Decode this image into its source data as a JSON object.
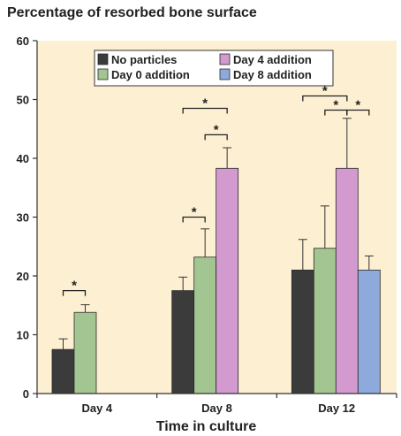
{
  "chart_data": {
    "type": "bar",
    "title": "Percentage of resorbed bone surface",
    "xlabel": "Time in culture",
    "ylabel": "",
    "ylim": [
      0,
      60
    ],
    "yticks": [
      0,
      10,
      20,
      30,
      40,
      50,
      60
    ],
    "categories": [
      "Day 4",
      "Day 8",
      "Day 12"
    ],
    "series": [
      {
        "name": "No particles",
        "color": "#3b3b3b",
        "values": [
          7.5,
          17.5,
          21.0
        ],
        "errors": [
          1.8,
          2.3,
          5.2
        ]
      },
      {
        "name": "Day 0 addition",
        "color": "#a3c591",
        "values": [
          13.8,
          23.2,
          24.7
        ],
        "errors": [
          1.3,
          4.8,
          7.2
        ]
      },
      {
        "name": "Day 4 addition",
        "color": "#d39ad0",
        "values": [
          null,
          38.3,
          38.3
        ],
        "errors": [
          null,
          3.5,
          8.5
        ]
      },
      {
        "name": "Day 8 addition",
        "color": "#8ea9dc",
        "values": [
          null,
          null,
          21.0
        ],
        "errors": [
          null,
          null,
          2.4
        ]
      }
    ],
    "background": "#fdf0d2",
    "significance": [
      {
        "category": 0,
        "from": 0,
        "to": 1,
        "y": 17.5,
        "label": "*"
      },
      {
        "category": 1,
        "from": 0,
        "to": 1,
        "y": 30.0,
        "label": "*"
      },
      {
        "category": 1,
        "from": 1,
        "to": 2,
        "y": 44.0,
        "label": "*"
      },
      {
        "category": 1,
        "from": 0,
        "to": 2,
        "y": 48.5,
        "label": "*"
      },
      {
        "category": 2,
        "from": 1,
        "to": 2,
        "y": 48.2,
        "label": "*"
      },
      {
        "category": 2,
        "from": 2,
        "to": 3,
        "y": 48.2,
        "label": "*"
      },
      {
        "category": 2,
        "from": 0,
        "to": 2,
        "y": 50.6,
        "label": "*"
      }
    ]
  }
}
